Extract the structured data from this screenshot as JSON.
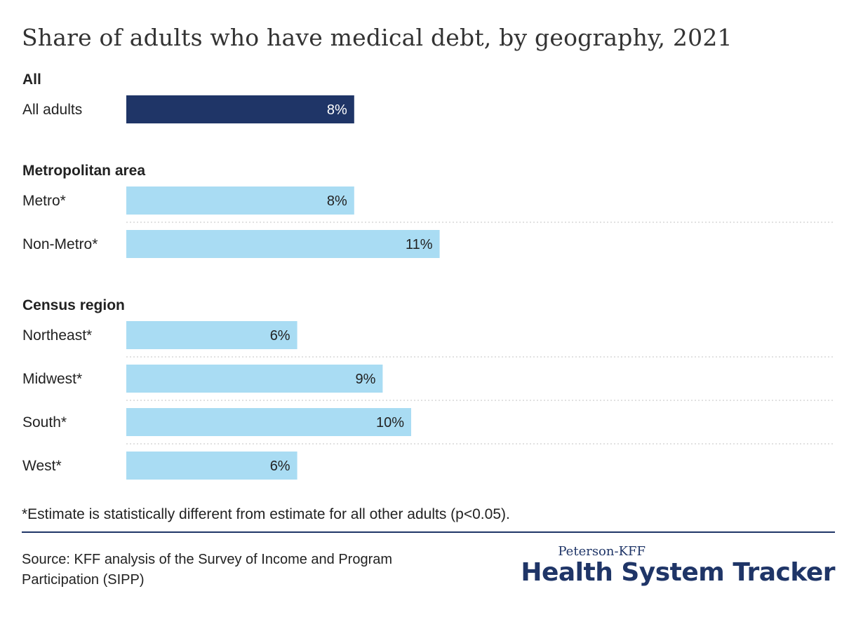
{
  "chart_data": {
    "type": "bar",
    "title": "Share of adults who have medical debt, by geography, 2021",
    "unit": "%",
    "groups": [
      {
        "label": "All",
        "rows": [
          {
            "label": "All adults",
            "value": 8,
            "display": "8%",
            "color": "#1f3567",
            "text_color": "#ffffff"
          }
        ]
      },
      {
        "label": "Metropolitan area",
        "rows": [
          {
            "label": "Metro*",
            "value": 8,
            "display": "8%",
            "color": "#a9dcf3",
            "text_color": "#222222"
          },
          {
            "label": "Non-Metro*",
            "value": 11,
            "display": "11%",
            "color": "#a9dcf3",
            "text_color": "#222222"
          }
        ]
      },
      {
        "label": "Census region",
        "rows": [
          {
            "label": "Northeast*",
            "value": 6,
            "display": "6%",
            "color": "#a9dcf3",
            "text_color": "#222222"
          },
          {
            "label": "Midwest*",
            "value": 9,
            "display": "9%",
            "color": "#a9dcf3",
            "text_color": "#222222"
          },
          {
            "label": "South*",
            "value": 10,
            "display": "10%",
            "color": "#a9dcf3",
            "text_color": "#222222"
          },
          {
            "label": "West*",
            "value": 6,
            "display": "6%",
            "color": "#a9dcf3",
            "text_color": "#222222"
          }
        ]
      }
    ]
  },
  "footnote": "*Estimate is statistically different from estimate for all other adults (p<0.05).",
  "source": "Source: KFF analysis of the Survey of Income and Program Participation (SIPP)",
  "brand": {
    "top": "Peterson-KFF",
    "main": "Health System Tracker",
    "color": "#1f3567"
  }
}
